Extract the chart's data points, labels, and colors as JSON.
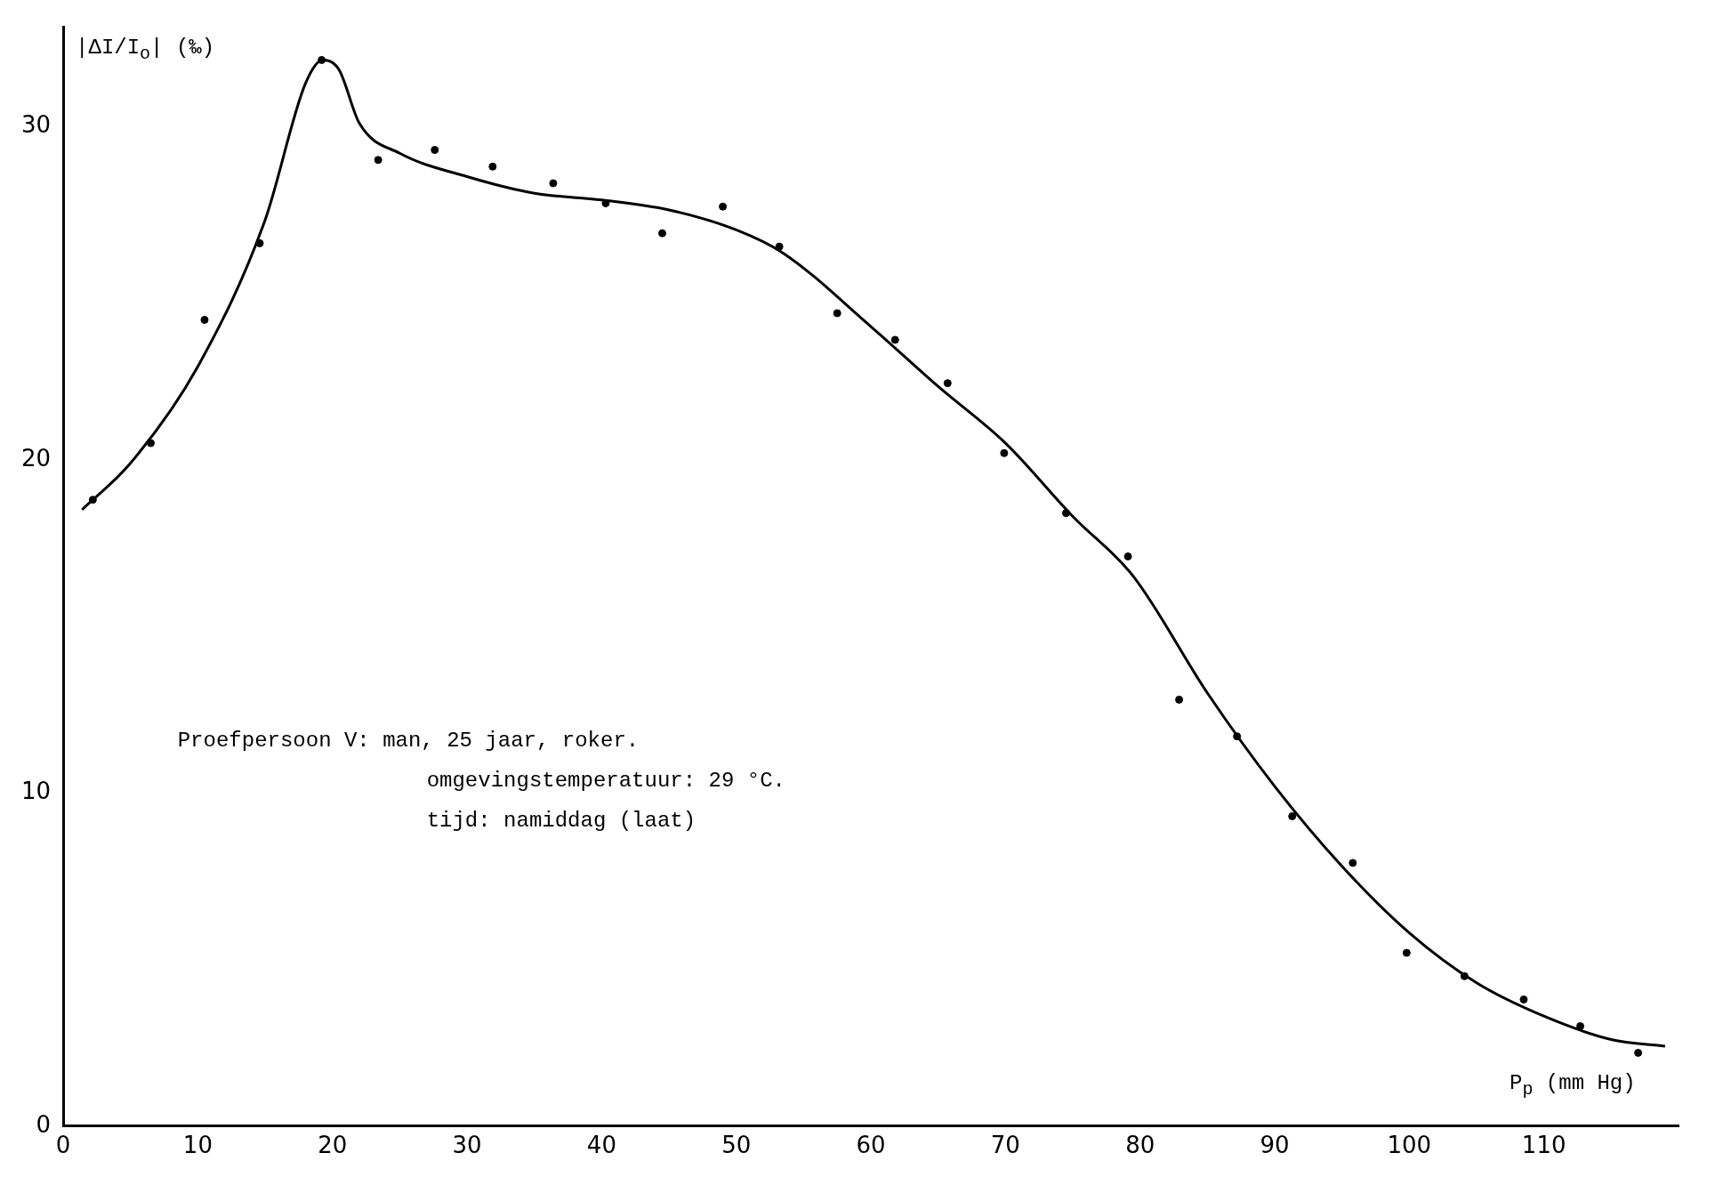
{
  "chart_data": {
    "type": "scatter",
    "xlabel": "P$_{p}$ (mm Hg)",
    "ylabel": "|ΔI/I$_{o}$| (‰)",
    "xlim": [
      0,
      120
    ],
    "ylim": [
      0,
      33
    ],
    "xticks": [
      0,
      10,
      20,
      30,
      40,
      50,
      60,
      70,
      80,
      90,
      100,
      110
    ],
    "yticks": [
      0,
      10,
      20,
      30
    ],
    "grid": false,
    "legend": false,
    "annotations": [
      "Proefpersoon V: man, 25 jaar, roker.",
      "omgevingstemperatuur: 29 °C.",
      "tijd: namiddag (laat)"
    ],
    "series": [
      {
        "type": "scatter",
        "marker": "circle",
        "color": "#000000",
        "x": [
          2.2,
          6.5,
          10.5,
          14.6,
          19.2,
          23.4,
          27.6,
          31.9,
          36.4,
          40.3,
          44.5,
          49.0,
          53.2,
          57.5,
          61.8,
          65.7,
          69.9,
          74.5,
          79.1,
          82.9,
          87.2,
          91.3,
          95.8,
          99.8,
          104.1,
          108.5,
          112.7,
          117.0
        ],
        "values": [
          18.8,
          20.5,
          24.2,
          26.5,
          32.0,
          29.0,
          29.3,
          28.8,
          28.3,
          27.7,
          26.8,
          27.6,
          26.4,
          24.4,
          23.6,
          22.3,
          20.2,
          18.4,
          17.1,
          12.8,
          11.7,
          9.3,
          7.9,
          5.2,
          4.5,
          3.8,
          3.0,
          2.2
        ]
      },
      {
        "type": "line",
        "marker": "none",
        "line_style": "solid",
        "color": "#000000",
        "x": [
          1.4,
          5,
          10,
          15,
          18,
          19.3,
          20.5,
          22,
          25,
          30,
          35,
          40,
          45,
          50,
          53.5,
          60,
          65,
          70,
          75,
          79.5,
          85,
          90,
          95,
          100,
          105,
          110,
          115,
          119
        ],
        "values": [
          18.5,
          19.9,
          22.8,
          27.2,
          31.3,
          32.0,
          31.7,
          30.1,
          29.2,
          28.5,
          28.0,
          27.8,
          27.5,
          26.9,
          26.2,
          24.0,
          22.2,
          20.5,
          18.3,
          16.5,
          13.0,
          10.2,
          7.8,
          5.8,
          4.3,
          3.3,
          2.6,
          2.4
        ]
      }
    ]
  }
}
